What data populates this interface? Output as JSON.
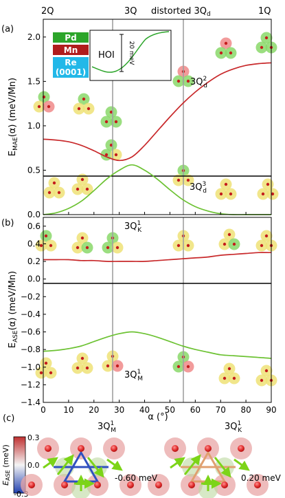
{
  "top_labels": {
    "q2": "2Q",
    "q3": "3Q",
    "distorted_prefix": "distorted 3Q",
    "distorted_sub": "d",
    "q1": "1Q"
  },
  "legend": {
    "pd": "Pd",
    "mn": "Mn",
    "re": "Re",
    "re_sub": "(0001)"
  },
  "inset": {
    "label": "HOI",
    "scale": "20 meV"
  },
  "panel_letters": {
    "a": "(a)",
    "b": "(b)",
    "c": "(c)"
  },
  "annotations": {
    "a_upper_main": "3Q",
    "a_upper_sup": "2",
    "a_upper_sub": "d",
    "a_lower_main": "3Q",
    "a_lower_sup": "3",
    "a_lower_sub": "d",
    "b_top_main": "3Q",
    "b_top_sup": "1",
    "b_top_sub": "K",
    "b_bottom_main": "3Q",
    "b_bottom_sup": "1",
    "b_bottom_sub": "M",
    "c_left_main": "3Q",
    "c_left_sup": "1",
    "c_left_sub": "M",
    "c_right_main": "3Q",
    "c_right_sup": "1",
    "c_right_sub": "K",
    "c_left_value": "-0.60 meV",
    "c_right_value": "0.20 meV"
  },
  "colorbar": {
    "label_main": "E",
    "label_sub": "ASE",
    "label_unit": " (meV)",
    "ticks": [
      "0.3",
      "0.0",
      "-0.3"
    ]
  },
  "colors": {
    "red_curve": "#c8282a",
    "green_curve": "#6cc232",
    "pd_box": "#2ca52a",
    "mn_box": "#b01c1c",
    "re_box": "#22b8e8",
    "vline": "#a0a0a0",
    "bond_blue": "#3050c0",
    "bond_orange": "#e0a070"
  },
  "chart_data": [
    {
      "type": "line",
      "panel": "a",
      "ylabel_main": "E",
      "ylabel_sub": "MAE",
      "ylabel_rest": "(α) (meV/Mn)",
      "xlim": [
        0,
        90
      ],
      "ylim": [
        0,
        2.2
      ],
      "yticks": [
        "0.0",
        "0.5",
        "1.0",
        "1.5",
        "2.0"
      ],
      "x": [
        0,
        5,
        10,
        15,
        20,
        25,
        30,
        35,
        40,
        45,
        50,
        55,
        60,
        65,
        70,
        75,
        80,
        85,
        90
      ],
      "series": [
        {
          "color": "red",
          "values": [
            0.85,
            0.84,
            0.82,
            0.78,
            0.72,
            0.65,
            0.61,
            0.65,
            0.78,
            0.94,
            1.1,
            1.25,
            1.38,
            1.49,
            1.58,
            1.64,
            1.68,
            1.7,
            1.71
          ]
        },
        {
          "color": "green",
          "values": [
            0.0,
            0.02,
            0.07,
            0.15,
            0.27,
            0.4,
            0.5,
            0.56,
            0.5,
            0.4,
            0.28,
            0.17,
            0.09,
            0.04,
            0.01,
            0.0,
            0.0,
            0.0,
            0.0
          ]
        }
      ],
      "vlines": [
        35.26,
        54.74
      ]
    },
    {
      "type": "line",
      "panel": "b",
      "ylabel_main": "E",
      "ylabel_sub": "ASE",
      "ylabel_rest": "(α) (meV/Mn)",
      "xlabel": "α (°)",
      "xlim": [
        0,
        90
      ],
      "ylim": [
        -1.4,
        0.7
      ],
      "yticks": [
        "0.6",
        "0.4",
        "0.2",
        "0.0",
        "−0.2",
        "−0.4",
        "−0.6",
        "−0.8",
        "−1.0",
        "−1.2",
        "−1.4"
      ],
      "xticks": [
        "0",
        "10",
        "20",
        "30",
        "40",
        "50",
        "60",
        "70",
        "80",
        "90"
      ],
      "x": [
        0,
        5,
        10,
        15,
        20,
        25,
        30,
        35,
        40,
        45,
        50,
        55,
        60,
        65,
        70,
        75,
        80,
        85,
        90
      ],
      "series": [
        {
          "color": "red",
          "values": [
            0.22,
            0.22,
            0.22,
            0.21,
            0.21,
            0.2,
            0.2,
            0.2,
            0.2,
            0.21,
            0.22,
            0.23,
            0.24,
            0.25,
            0.27,
            0.28,
            0.29,
            0.3,
            0.3
          ]
        },
        {
          "color": "green",
          "values": [
            -0.82,
            -0.81,
            -0.79,
            -0.76,
            -0.71,
            -0.66,
            -0.62,
            -0.6,
            -0.62,
            -0.66,
            -0.71,
            -0.76,
            -0.8,
            -0.83,
            -0.86,
            -0.87,
            -0.88,
            -0.89,
            -0.9
          ]
        }
      ],
      "vlines": [
        35.26,
        54.74
      ]
    }
  ]
}
